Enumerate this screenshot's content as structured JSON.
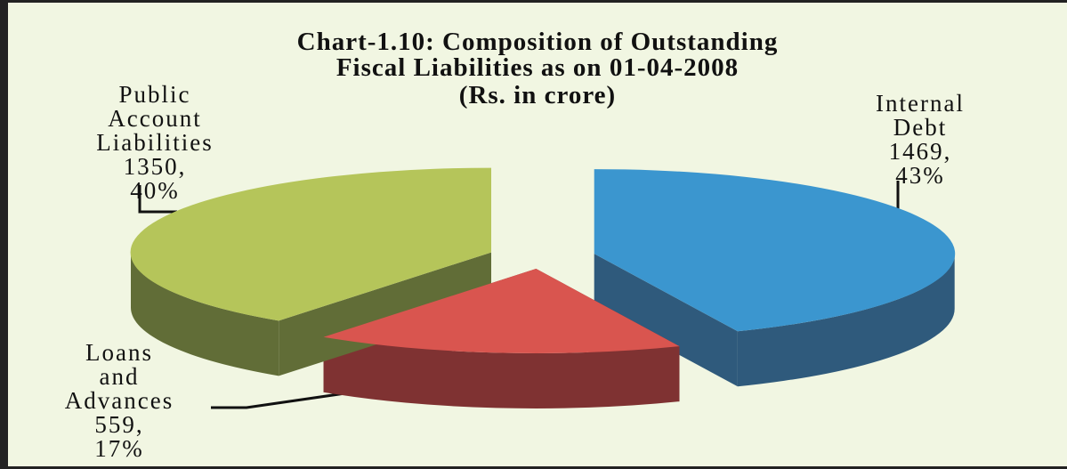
{
  "chart_data": {
    "type": "pie3d",
    "title": "Chart-1.10: Composition of Outstanding\nFiscal Liabilities as on 01-04-2008",
    "subtitle": "(Rs. in crore)",
    "categories": [
      "Internal Debt",
      "Loans and Advances",
      "Public Account Liabilities"
    ],
    "values": [
      1469,
      559,
      1350
    ],
    "value_labels": [
      "1469, 43%",
      "559, 17%",
      "1350, 40%"
    ],
    "colors": [
      "#3b96cf",
      "#d9554f",
      "#b5c55a"
    ],
    "side_colors": [
      "#2f5a7c",
      "#7f3232",
      "#616d37"
    ]
  }
}
